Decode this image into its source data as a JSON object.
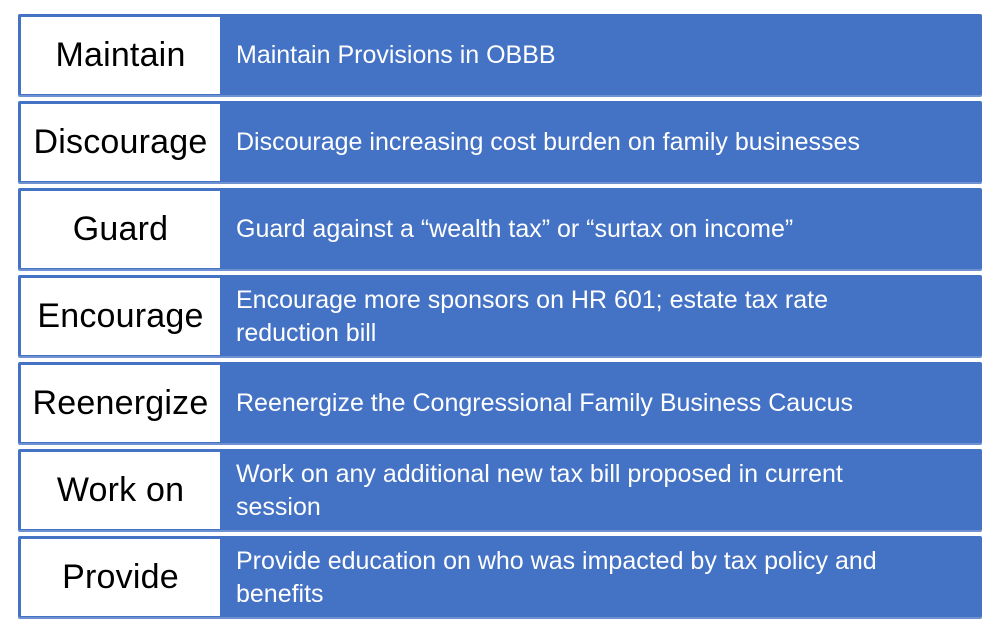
{
  "slide": {
    "rows": [
      {
        "label": "Maintain",
        "description": "Maintain Provisions in OBBB"
      },
      {
        "label": "Discourage",
        "description": "Discourage increasing cost burden on family businesses"
      },
      {
        "label": "Guard",
        "description": "Guard against a “wealth tax” or “surtax on income”"
      },
      {
        "label": "Encourage",
        "description": "Encourage more sponsors on HR 601; estate tax rate\nreduction bill"
      },
      {
        "label": "Reenergize",
        "description": "Reenergize the Congressional Family Business Caucus"
      },
      {
        "label": "Work on",
        "description": "Work on any additional new tax bill proposed in current\nsession"
      },
      {
        "label": "Provide",
        "description": "Provide education on who was impacted by tax policy and\nbenefits"
      }
    ],
    "colors": {
      "row_fill": "#4472C4",
      "label_background": "#FFFFFF",
      "label_text": "#000000",
      "description_text": "#FFFFFF",
      "page_background": "#FFFFFF"
    }
  }
}
